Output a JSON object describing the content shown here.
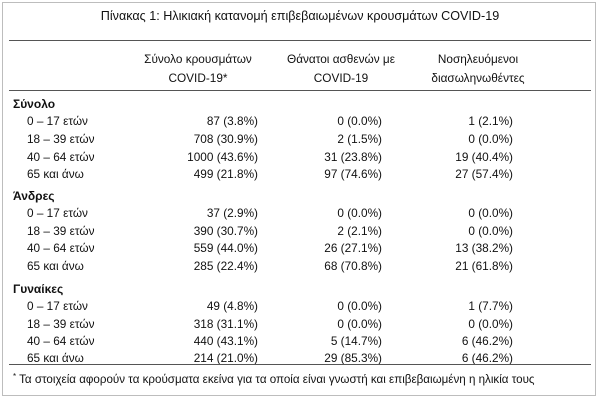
{
  "title": "Πίνακας 1: Ηλικιακή κατανομή επιβεβαιωμένων κρουσμάτων COVID-19",
  "columns": [
    {
      "line1": "Σύνολο κρουσμάτων",
      "line2": "COVID-19*"
    },
    {
      "line1": "Θάνατοι ασθενών με",
      "line2": "COVID-19"
    },
    {
      "line1": "Νοσηλευόμενοι",
      "line2": "διασωληνωθέντες"
    }
  ],
  "sections": [
    {
      "name": "Σύνολο",
      "rows": [
        {
          "age": "0 – 17 ετών",
          "cases": "87 (3.8%)",
          "deaths": "0 (0.0%)",
          "intubated": "1 (2.1%)"
        },
        {
          "age": "18 – 39 ετών",
          "cases": "708 (30.9%)",
          "deaths": "2 (1.5%)",
          "intubated": "0 (0.0%)"
        },
        {
          "age": "40 – 64 ετών",
          "cases": "1000 (43.6%)",
          "deaths": "31 (23.8%)",
          "intubated": "19 (40.4%)"
        },
        {
          "age": "65 και άνω",
          "cases": "499 (21.8%)",
          "deaths": "97 (74.6%)",
          "intubated": "27 (57.4%)"
        }
      ]
    },
    {
      "name": "Άνδρες",
      "rows": [
        {
          "age": "0 – 17 ετών",
          "cases": "37 (2.9%)",
          "deaths": "0 (0.0%)",
          "intubated": "0 (0.0%)"
        },
        {
          "age": "18 – 39 ετών",
          "cases": "390 (30.7%)",
          "deaths": "2 (2.1%)",
          "intubated": "0 (0.0%)"
        },
        {
          "age": "40 – 64 ετών",
          "cases": "559 (44.0%)",
          "deaths": "26 (27.1%)",
          "intubated": "13 (38.2%)"
        },
        {
          "age": "65 και άνω",
          "cases": "285 (22.4%)",
          "deaths": "68 (70.8%)",
          "intubated": "21 (61.8%)"
        }
      ]
    },
    {
      "name": "Γυναίκες",
      "rows": [
        {
          "age": "0 – 17 ετών",
          "cases": "49 (4.8%)",
          "deaths": "0 (0.0%)",
          "intubated": "1 (7.7%)"
        },
        {
          "age": "18 – 39 ετών",
          "cases": "318 (31.1%)",
          "deaths": "0 (0.0%)",
          "intubated": "0 (0.0%)"
        },
        {
          "age": "40 – 64 ετών",
          "cases": "440 (43.1%)",
          "deaths": "5 (14.7%)",
          "intubated": "6 (46.2%)"
        },
        {
          "age": "65 και άνω",
          "cases": "214 (21.0%)",
          "deaths": "29 (85.3%)",
          "intubated": "6 (46.2%)"
        }
      ]
    }
  ],
  "footnote": {
    "mark": "*",
    "text": "Τα στοιχεία αφορούν τα κρούσματα εκείνα για τα οποία είναι γνωστή και επιβεβαιωμένη η ηλικία τους"
  }
}
